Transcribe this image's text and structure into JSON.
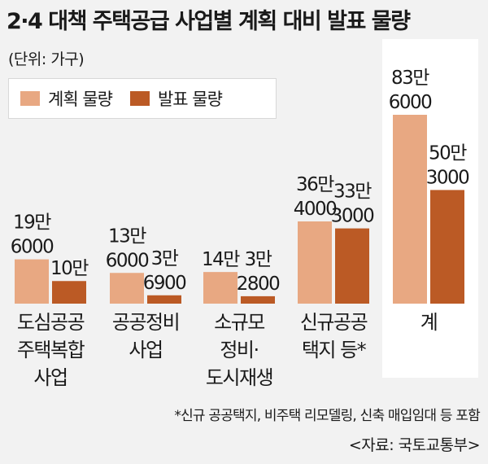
{
  "title": "2·4 대책 주택공급 사업별 계획 대비 발표 물량",
  "unit": "(단위: 가구)",
  "footnote": "*신규 공공택지, 비주택 리모델링, 신축 매입임대 등 포함",
  "source": "<자료: 국토교통부>",
  "colors": {
    "planned": "#e8a882",
    "announced": "#bb5a25",
    "total_panel": "#ffffff"
  },
  "chart_data": {
    "type": "bar",
    "title": "2·4 대책 주택공급 사업별 계획 대비 발표 물량",
    "ylabel": "(단위: 가구)",
    "legend_position": "top-left",
    "grid": false,
    "categories": [
      [
        "도심공공",
        "주택복합",
        "사업"
      ],
      [
        "공공정비",
        "사업"
      ],
      [
        "소규모",
        "정비·",
        "도시재생"
      ],
      [
        "신규공공",
        "택지 등*"
      ],
      [
        "계"
      ]
    ],
    "series": [
      {
        "name": "계획 물량",
        "values": [
          196000,
          136000,
          140000,
          364000,
          836000
        ],
        "labels": [
          [
            "19만",
            "6000"
          ],
          [
            "13만",
            "6000"
          ],
          [
            "14만"
          ],
          [
            "36만",
            "4000"
          ],
          [
            "83만",
            "6000"
          ]
        ]
      },
      {
        "name": "발표 물량",
        "values": [
          100000,
          36900,
          32800,
          333000,
          503000
        ],
        "labels": [
          [
            "10만"
          ],
          [
            "3만",
            "6900"
          ],
          [
            "3만",
            "2800"
          ],
          [
            "33만",
            "3000"
          ],
          [
            "50만",
            "3000"
          ]
        ]
      }
    ]
  }
}
